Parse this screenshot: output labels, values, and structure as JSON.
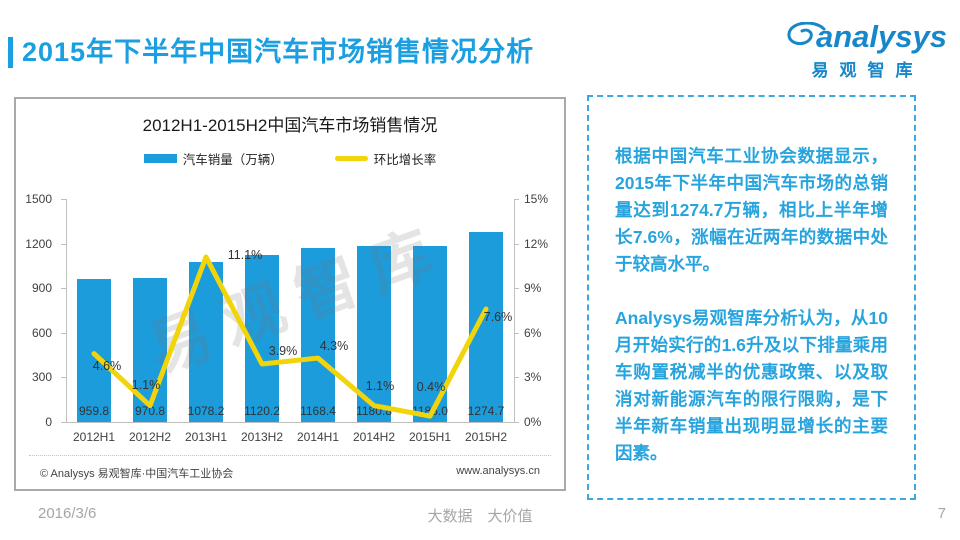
{
  "header": {
    "title": "2015年下半年中国汽车市场销售情况分析",
    "logo_text": "analysys",
    "logo_subtext": "易观智库"
  },
  "chart": {
    "title": "2012H1-2015H2中国汽车市场销售情况",
    "watermark": "易观智库",
    "source_left": "© Analysys 易观智库·中国汽车工业协会",
    "source_right": "www.analysys.cn",
    "colors": {
      "bar": "#1C9CDB",
      "line": "#F2D40B",
      "axis": "#BFBFBF",
      "brand": "#1B9FE0"
    },
    "legend": [
      {
        "label": "汽车销量（万辆）",
        "type": "bar"
      },
      {
        "label": "环比增长率",
        "type": "line"
      }
    ]
  },
  "chart_data": {
    "type": "bar+line",
    "title": "2012H1-2015H2中国汽车市场销售情况",
    "categories": [
      "2012H1",
      "2012H2",
      "2013H1",
      "2013H2",
      "2014H1",
      "2014H2",
      "2015H1",
      "2015H2"
    ],
    "series": [
      {
        "name": "汽车销量（万辆）",
        "type": "bar",
        "axis": "left",
        "values": [
          959.8,
          970.8,
          1078.2,
          1120.2,
          1168.4,
          1180.8,
          1185.0,
          1274.7
        ],
        "value_labels": [
          "959.8",
          "970.8",
          "1078.2",
          "1120.2",
          "1168.4",
          "1180.8",
          "1185.0",
          "1274.7"
        ]
      },
      {
        "name": "环比增长率",
        "type": "line",
        "axis": "right",
        "values": [
          4.6,
          1.1,
          11.1,
          3.9,
          4.3,
          1.1,
          0.4,
          7.6
        ],
        "value_labels": [
          "4.6%",
          "1.1%",
          "11.1%",
          "3.9%",
          "4.3%",
          "1.1%",
          "0.4%",
          "7.6%"
        ]
      }
    ],
    "left_axis": {
      "max": 1500,
      "ticks": [
        0,
        300,
        600,
        900,
        1200,
        1500
      ],
      "grid": false
    },
    "right_axis": {
      "max": 15,
      "ticks": [
        0,
        3,
        6,
        9,
        12,
        15
      ],
      "suffix": "%",
      "grid": false
    },
    "legend_position": "top"
  },
  "panel": {
    "paragraph1": "根据中国汽车工业协会数据显示，2015年下半年中国汽车市场的总销量达到1274.7万辆，相比上半年增长7.6%，涨幅在近两年的数据中处于较高水平。",
    "paragraph2": "Analysys易观智库分析认为，从10月开始实行的1.6升及以下排量乘用车购置税减半的优惠政策、以及取消对新能源汽车的限行限购，是下半年新车销量出现明显增长的主要因素。"
  },
  "footer": {
    "date": "2016/3/6",
    "slogan": "大数据　大价值",
    "page": "7"
  }
}
